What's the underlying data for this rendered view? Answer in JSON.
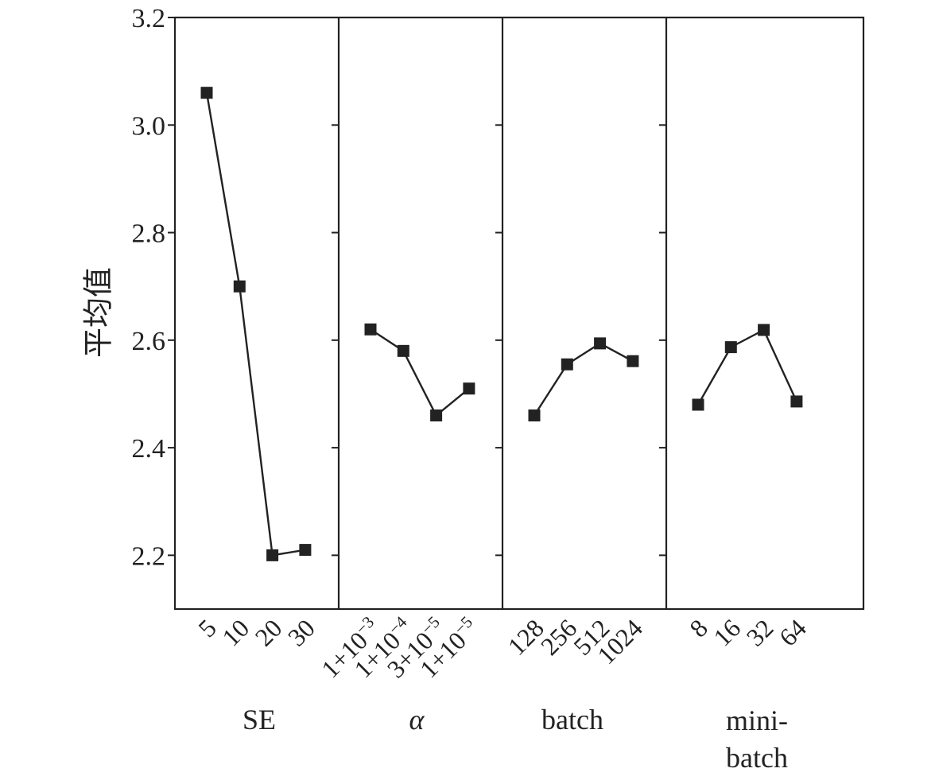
{
  "chart_data": {
    "type": "line",
    "ylabel": "平均值",
    "ylim": [
      2.1,
      3.2
    ],
    "yticks": [
      "2.2",
      "2.4",
      "2.6",
      "2.8",
      "3.0",
      "3.2"
    ],
    "yticks_values": [
      2.2,
      2.4,
      2.6,
      2.8,
      3.0,
      3.2
    ],
    "grid": false,
    "marker": "square",
    "line_color": "#222222",
    "panels": [
      {
        "label_lines": [
          "SE"
        ],
        "label_italic": false,
        "categories": [
          "5",
          "10",
          "20",
          "30"
        ],
        "values": [
          3.06,
          2.7,
          2.2,
          2.21
        ]
      },
      {
        "label_lines": [
          "α"
        ],
        "label_italic": true,
        "categories": [
          {
            "base": "1+10",
            "exp": "−3"
          },
          {
            "base": "1+10",
            "exp": "−4"
          },
          {
            "base": "3+10",
            "exp": "−5"
          },
          {
            "base": "1+10",
            "exp": "−5"
          }
        ],
        "values": [
          2.62,
          2.58,
          2.46,
          2.51
        ]
      },
      {
        "label_lines": [
          "batch"
        ],
        "label_italic": false,
        "categories": [
          "128",
          "256",
          "512",
          "1024"
        ],
        "values": [
          2.46,
          2.555,
          2.594,
          2.561
        ]
      },
      {
        "label_lines": [
          "mini-",
          "batch"
        ],
        "label_italic": false,
        "categories": [
          "8",
          "16",
          "32",
          "64"
        ],
        "values": [
          2.48,
          2.587,
          2.619,
          2.486
        ]
      }
    ]
  }
}
